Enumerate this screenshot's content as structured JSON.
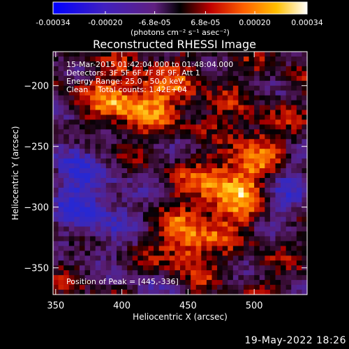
{
  "colorbar": {
    "tick_labels": [
      "-0.00034",
      "-0.00020",
      "-6.8e-05",
      "6.8e-05",
      "0.00020",
      "0.00034"
    ],
    "tick_values": [
      -0.00034,
      -0.0002,
      -6.8e-05,
      6.8e-05,
      0.0002,
      0.00034
    ],
    "range": [
      -0.00034,
      0.00034
    ],
    "units": "(photons cm⁻² s⁻¹ asec⁻²)"
  },
  "chart_data": {
    "type": "heatmap",
    "title": "Reconstructed RHESSI Image",
    "xlabel": "Heliocentric X (arcsec)",
    "ylabel": "Heliocentric Y (arcsec)",
    "xlim": [
      348,
      540
    ],
    "ylim": [
      -372,
      -172
    ],
    "x_ticks": [
      350,
      400,
      450,
      500
    ],
    "y_ticks": [
      -200,
      -250,
      -300,
      -350
    ],
    "x_tick_labels": [
      "350",
      "400",
      "450",
      "500"
    ],
    "y_tick_labels": [
      "−200",
      "−250",
      "−300",
      "−350"
    ],
    "info_lines": [
      "15-Mar-2015 01:42:04.000 to 01:48:04.000",
      "Detectors: 3F 5F 6F 7F 8F 9F, Att 1",
      "Energy Range: 25.0 - 50.0 keV",
      "Clean    Total counts: 1.42E+04"
    ],
    "peak_label": "Position of Peak = [445,-336]",
    "peak_position": [
      445,
      -336
    ],
    "colormap": "blue-purple-red-orange-yellow-white",
    "approx_value_regions": [
      {
        "region": "upper-left bright patch",
        "x": [
          390,
          460
        ],
        "y": [
          -240,
          -190
        ],
        "level": 0.7
      },
      {
        "region": "central-right bright ridge",
        "x": [
          440,
          510
        ],
        "y": [
          -340,
          -250
        ],
        "level": 0.85
      },
      {
        "region": "peak",
        "x": [
          445,
          445
        ],
        "y": [
          -336,
          -336
        ],
        "level": 1.0
      },
      {
        "region": "lower-left negative area",
        "x": [
          350,
          410
        ],
        "y": [
          -340,
          -260
        ],
        "level": 0.1
      },
      {
        "region": "right negative area",
        "x": [
          505,
          540
        ],
        "y": [
          -320,
          -270
        ],
        "level": 0.12
      }
    ]
  },
  "footer": {
    "timestamp": "19-May-2022 18:26"
  }
}
